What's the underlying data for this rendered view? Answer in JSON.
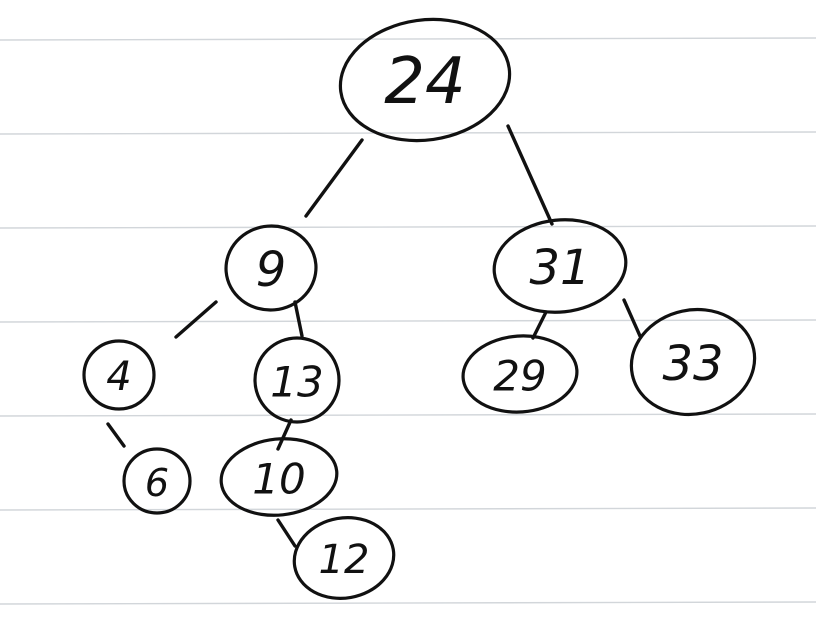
{
  "tree": {
    "nodes": [
      {
        "id": "n24",
        "label": "24"
      },
      {
        "id": "n9",
        "label": "9"
      },
      {
        "id": "n31",
        "label": "31"
      },
      {
        "id": "n4",
        "label": "4"
      },
      {
        "id": "n13",
        "label": "13"
      },
      {
        "id": "n29",
        "label": "29"
      },
      {
        "id": "n33",
        "label": "33"
      },
      {
        "id": "n6",
        "label": "6"
      },
      {
        "id": "n10",
        "label": "10"
      },
      {
        "id": "n12",
        "label": "12"
      }
    ],
    "edges": [
      {
        "from": "n24",
        "to": "n9"
      },
      {
        "from": "n24",
        "to": "n31"
      },
      {
        "from": "n9",
        "to": "n4"
      },
      {
        "from": "n9",
        "to": "n13"
      },
      {
        "from": "n31",
        "to": "n29"
      },
      {
        "from": "n31",
        "to": "n33"
      },
      {
        "from": "n4",
        "to": "n6"
      },
      {
        "from": "n13",
        "to": "n10"
      },
      {
        "from": "n10",
        "to": "n12"
      }
    ]
  }
}
